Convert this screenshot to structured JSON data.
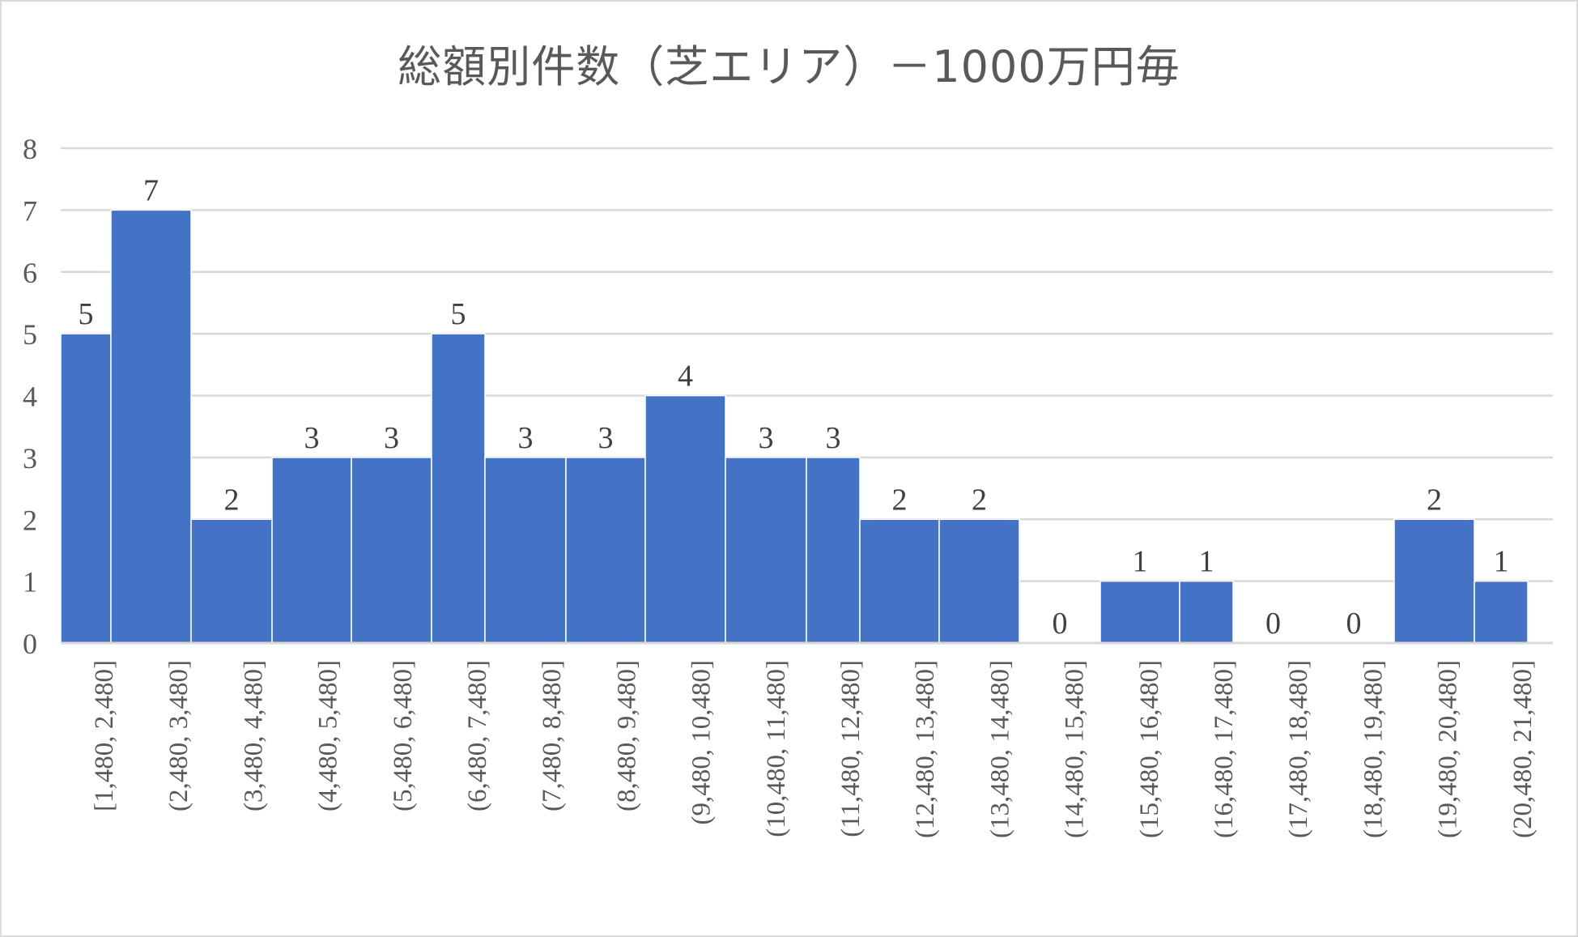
{
  "chart_data": {
    "type": "bar",
    "title": "総額別件数（芝エリア）－1000万円毎",
    "xlabel": "",
    "ylabel": "",
    "ylim": [
      0,
      8
    ],
    "yticks": [
      "0",
      "1",
      "2",
      "3",
      "4",
      "5",
      "6",
      "7",
      "8"
    ],
    "grid": true,
    "categories": [
      "[1,480, 2,480]",
      "(2,480, 3,480]",
      "(3,480, 4,480]",
      "(4,480, 5,480]",
      "(5,480, 6,480]",
      "(6,480, 7,480]",
      "(7,480, 8,480]",
      "(8,480, 9,480]",
      "(9,480, 10,480]",
      "(10,480, 11,480]",
      "(11,480, 12,480]",
      "(12,480, 13,480]",
      "(13,480, 14,480]",
      "(14,480, 15,480]",
      "(15,480, 16,480]",
      "(16,480, 17,480]",
      "(17,480, 18,480]",
      "(18,480, 19,480]",
      "(19,480, 20,480]",
      "(20,480, 21,480]"
    ],
    "values": [
      5,
      7,
      2,
      3,
      3,
      5,
      3,
      3,
      4,
      3,
      3,
      2,
      2,
      0,
      1,
      1,
      0,
      0,
      2,
      1
    ],
    "bar_color": "#4472C4"
  }
}
